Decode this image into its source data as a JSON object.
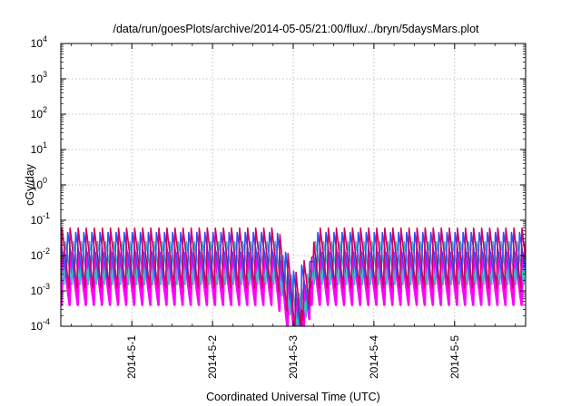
{
  "chart_data": {
    "type": "line",
    "title": "/data/run/goesPlots/archive/2014-05-05/21:00/flux/../bryn/5daysMars.plot",
    "xlabel": "Coordinated Universal Time (UTC)",
    "ylabel": "cGy/day",
    "x_range_days": [
      0.12,
      5.88
    ],
    "x_ticks": [
      {
        "label": "2014-5-1",
        "day": 1
      },
      {
        "label": "2014-5-2",
        "day": 2
      },
      {
        "label": "2014-5-3",
        "day": 3
      },
      {
        "label": "2014-5-4",
        "day": 4
      },
      {
        "label": "2014-5-5",
        "day": 5
      }
    ],
    "y_scale": "log",
    "y_exponents": [
      -4,
      4
    ],
    "y_tick_exponents": [
      "-4",
      "-3",
      "-2",
      "-1",
      "0",
      "1",
      "2",
      "3",
      "4"
    ],
    "y_tick_base": "10",
    "grid": true,
    "legend": "none",
    "spike_period_days": 0.1,
    "dip": {
      "start_day": 2.8,
      "min_day": 3.1,
      "recover_day": 3.2
    },
    "series": [
      {
        "color": "#d00060",
        "peak": 0.06,
        "trough": 0.0012
      },
      {
        "color": "#3050ff",
        "peak": 0.045,
        "trough": 0.0025
      },
      {
        "color": "#30c0c0",
        "peak": 0.025,
        "trough": 0.0015
      },
      {
        "color": "#ff00ff",
        "peak": 0.012,
        "trough": 0.0004
      }
    ]
  }
}
